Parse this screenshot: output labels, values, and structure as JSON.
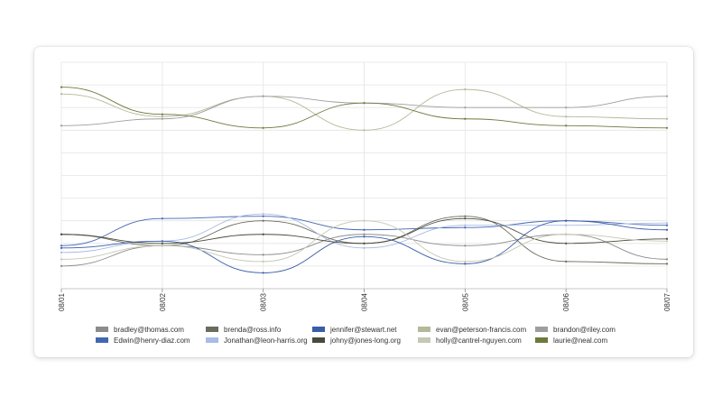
{
  "chart_data": {
    "type": "line",
    "title": "",
    "xlabel": "",
    "ylabel": "",
    "x": [
      "08/01",
      "08/02",
      "08/03",
      "08/04",
      "08/05",
      "08/06",
      "08/07"
    ],
    "ylim": [
      0,
      100
    ],
    "grid": true,
    "curve": "smooth",
    "legend_position": "bottom",
    "series": [
      {
        "name": "bradley@thomas.com",
        "color": "#8c8c8c",
        "values": [
          10,
          19,
          15,
          24,
          19,
          24,
          13
        ]
      },
      {
        "name": "Edwin@henry-diaz.com",
        "color": "#4267b2",
        "values": [
          19,
          31,
          32,
          26,
          27,
          30,
          28
        ]
      },
      {
        "name": "brenda@ross.info",
        "color": "#6b6b5e",
        "values": [
          24,
          19,
          30,
          20,
          32,
          12,
          11
        ]
      },
      {
        "name": "Jonathan@leon-harris.org",
        "color": "#a9bbe6",
        "values": [
          16,
          21,
          33,
          18,
          28,
          28,
          29
        ]
      },
      {
        "name": "jennifer@stewart.net",
        "color": "#3a5da8",
        "values": [
          18,
          21,
          7,
          23,
          11,
          30,
          26
        ]
      },
      {
        "name": "johny@jones-long.org",
        "color": "#4a4a3c",
        "values": [
          24,
          20,
          24,
          20,
          31,
          20,
          22
        ]
      },
      {
        "name": "evan@peterson-francis.com",
        "color": "#b5b89a",
        "values": [
          86,
          76,
          85,
          70,
          88,
          76,
          75
        ]
      },
      {
        "name": "holly@cantrel-nguyen.com",
        "color": "#c6c8b4",
        "values": [
          13,
          19,
          12,
          30,
          12,
          24,
          21
        ]
      },
      {
        "name": "brandon@riley.com",
        "color": "#9e9e9e",
        "values": [
          72,
          75,
          85,
          82,
          80,
          80,
          85
        ]
      },
      {
        "name": "laurie@neal.com",
        "color": "#6d7a3e",
        "values": [
          89,
          77,
          71,
          82,
          75,
          72,
          71
        ]
      }
    ]
  }
}
